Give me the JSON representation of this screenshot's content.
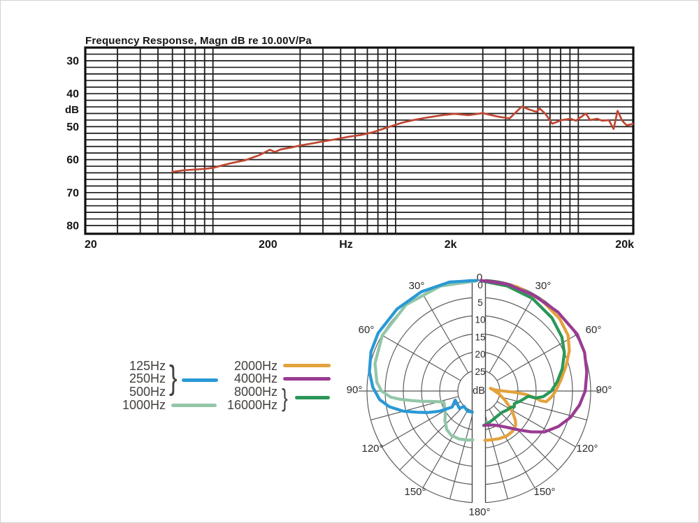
{
  "page": {
    "background": "#ffffff",
    "kind": "microphone specification charts"
  },
  "fr": {
    "title": "Frequency Response, Magn dB re 10.00V/Pa"
  },
  "legend": {
    "groups": [
      {
        "labels": [
          "125Hz",
          "250Hz",
          "500Hz"
        ],
        "brace": "}",
        "color": "#2a99d6"
      },
      {
        "labels": [
          "1000Hz"
        ],
        "color": "#93c6a8"
      },
      {
        "labels": [
          "2000Hz"
        ],
        "color": "#e4a23c"
      },
      {
        "labels": [
          "4000Hz"
        ],
        "color": "#9a3b92"
      },
      {
        "labels": [
          "8000Hz",
          "16000Hz"
        ],
        "brace": "}",
        "color": "#2a9758"
      }
    ]
  },
  "chart_data": [
    {
      "type": "line",
      "title": "Frequency Response, Magn dB re 10.00V/Pa",
      "x_scale": "log",
      "x_range": [
        20,
        20000
      ],
      "x_ticks": [
        {
          "label": "20",
          "value": 20
        },
        {
          "label": "200",
          "value": 200
        },
        {
          "label": "2k",
          "value": 2000
        },
        {
          "label": "20k",
          "value": 20000
        }
      ],
      "x_unit_label": "Hz",
      "y_unit_label": "dB",
      "y_ticks": [
        30,
        40,
        50,
        60,
        70,
        80
      ],
      "y_range": [
        26,
        82.5
      ],
      "y_inverted": true,
      "grid": {
        "y_step_db": 2,
        "x_minor": "1-2-3...9 per decade"
      },
      "series": [
        {
          "name": "frequency-response",
          "color": "#bf4631",
          "points": [
            [
              60,
              63.7
            ],
            [
              70,
              63.2
            ],
            [
              80,
              63.0
            ],
            [
              90,
              62.8
            ],
            [
              100,
              62.5
            ],
            [
              115,
              61.6
            ],
            [
              130,
              60.9
            ],
            [
              150,
              60.2
            ],
            [
              180,
              58.6
            ],
            [
              205,
              57.0
            ],
            [
              218,
              57.7
            ],
            [
              235,
              56.9
            ],
            [
              270,
              56.3
            ],
            [
              300,
              55.7
            ],
            [
              340,
              55.2
            ],
            [
              380,
              54.7
            ],
            [
              430,
              54.2
            ],
            [
              480,
              53.7
            ],
            [
              560,
              53.0
            ],
            [
              650,
              52.5
            ],
            [
              750,
              51.7
            ],
            [
              850,
              50.7
            ],
            [
              950,
              49.8
            ],
            [
              1100,
              48.7
            ],
            [
              1250,
              48.0
            ],
            [
              1500,
              47.2
            ],
            [
              1800,
              46.5
            ],
            [
              2100,
              46.1
            ],
            [
              2500,
              46.5
            ],
            [
              3000,
              45.9
            ],
            [
              3600,
              46.9
            ],
            [
              4200,
              47.5
            ],
            [
              4900,
              43.9
            ],
            [
              5400,
              44.8
            ],
            [
              5900,
              45.5
            ],
            [
              6150,
              44.5
            ],
            [
              6600,
              46.1
            ],
            [
              7200,
              49.1
            ],
            [
              8100,
              48.0
            ],
            [
              9100,
              47.6
            ],
            [
              9700,
              48.2
            ],
            [
              11000,
              46.0
            ],
            [
              11600,
              48.0
            ],
            [
              12700,
              47.6
            ],
            [
              13500,
              48.2
            ],
            [
              14700,
              48.0
            ],
            [
              15600,
              50.7
            ],
            [
              16400,
              45.2
            ],
            [
              17400,
              48.2
            ],
            [
              18400,
              49.6
            ],
            [
              19900,
              49.2
            ]
          ]
        }
      ]
    },
    {
      "type": "polar",
      "center_label": "dB",
      "radial_ticks": [
        0,
        5,
        10,
        15,
        20,
        25
      ],
      "radial_range": [
        0,
        25
      ],
      "radial_direction": "attenuation increases toward center",
      "angle_labels": [
        "0",
        "30°",
        "60°",
        "90°",
        "120°",
        "150°",
        "180°"
      ],
      "spoke_angles_upper": [
        30,
        60,
        90
      ],
      "spoke_angles_lower": [
        105,
        120,
        135,
        150,
        165
      ],
      "series": [
        {
          "name": "1000Hz",
          "color": "#93c6a8",
          "side": "left",
          "points": [
            [
              1,
              0.4
            ],
            [
              20,
              0.0
            ],
            [
              40,
              -0.3
            ],
            [
              60,
              0.1
            ],
            [
              75,
              1.2
            ],
            [
              85,
              2.6
            ],
            [
              90,
              4.0
            ],
            [
              94,
              6.5
            ],
            [
              96,
              9.0
            ],
            [
              98,
              12.0
            ],
            [
              100,
              14.6
            ],
            [
              102,
              17.0
            ],
            [
              105,
              19.4
            ],
            [
              108,
              20.7
            ],
            [
              115,
              20.4
            ],
            [
              122,
              19.9
            ],
            [
              131,
              18.4
            ],
            [
              140,
              17.0
            ],
            [
              148,
              16.4
            ],
            [
              158,
              16.5
            ],
            [
              167,
              16.9
            ],
            [
              173,
              17.2
            ]
          ]
        },
        {
          "name": "125-500Hz",
          "color": "#2a99d6",
          "side": "left",
          "points": [
            [
              1,
              0.3
            ],
            [
              15,
              -0.3
            ],
            [
              30,
              -0.8
            ],
            [
              45,
              -1.1
            ],
            [
              60,
              -1.2
            ],
            [
              70,
              -0.8
            ],
            [
              80,
              0.2
            ],
            [
              88,
              1.6
            ],
            [
              95,
              3.4
            ],
            [
              100,
              5.8
            ],
            [
              105,
              9.3
            ],
            [
              109,
              12.8
            ],
            [
              113,
              15.6
            ],
            [
              117,
              18.5
            ],
            [
              121,
              22.2
            ],
            [
              111,
              23.8
            ],
            [
              132,
              23.6
            ],
            [
              136,
              24.9
            ],
            [
              151,
              24.4
            ],
            [
              163,
              24.7
            ]
          ]
        },
        {
          "name": "2000Hz",
          "color": "#e4a23c",
          "side": "right",
          "points": [
            [
              1,
              0.3
            ],
            [
              20,
              0.2
            ],
            [
              35,
              0.4
            ],
            [
              48,
              0.9
            ],
            [
              58,
              1.8
            ],
            [
              66,
              3.5
            ],
            [
              74,
              5.8
            ],
            [
              82,
              7.9
            ],
            [
              90,
              9.6
            ],
            [
              95,
              10.8
            ],
            [
              99,
              12.0
            ],
            [
              99,
              13.5
            ],
            [
              97,
              15.0
            ],
            [
              94,
              18.0
            ],
            [
              92,
              21.0
            ],
            [
              90,
              24.0
            ],
            [
              86,
              26.3
            ],
            [
              77,
              27.5
            ],
            [
              88,
              26.6
            ],
            [
              99,
              25.0
            ],
            [
              110,
              23.0
            ],
            [
              118,
              21.0
            ],
            [
              124,
              19.3
            ],
            [
              129,
              17.8
            ],
            [
              133,
              16.9
            ],
            [
              140,
              16.3
            ],
            [
              148,
              16.2
            ],
            [
              157,
              16.5
            ],
            [
              166,
              16.9
            ],
            [
              173,
              17.1
            ]
          ]
        },
        {
          "name": "8000-16000Hz",
          "color": "#2a9758",
          "side": "right",
          "points": [
            [
              1,
              0.4
            ],
            [
              15,
              0.8
            ],
            [
              30,
              1.3
            ],
            [
              45,
              2.3
            ],
            [
              57,
              3.5
            ],
            [
              66,
              5.0
            ],
            [
              75,
              7.0
            ],
            [
              83,
              9.0
            ],
            [
              90,
              10.8
            ],
            [
              95,
              13.0
            ],
            [
              97,
              15.0
            ],
            [
              96,
              17.1
            ],
            [
              100,
              18.2
            ],
            [
              104,
              19.1
            ],
            [
              107,
              19.9
            ],
            [
              110,
              20.4
            ],
            [
              114,
              20.1
            ],
            [
              117,
              20.9
            ],
            [
              124,
              21.4
            ],
            [
              133,
              22.1
            ],
            [
              143,
              22.2
            ],
            [
              156,
              21.9
            ],
            [
              167,
              21.4
            ],
            [
              172,
              21.2
            ]
          ]
        },
        {
          "name": "4000Hz",
          "color": "#9a3b92",
          "side": "right",
          "points": [
            [
              1,
              0.3
            ],
            [
              15,
              0.3
            ],
            [
              30,
              0.4
            ],
            [
              45,
              0.0
            ],
            [
              60,
              -0.5
            ],
            [
              70,
              -0.2
            ],
            [
              80,
              0.6
            ],
            [
              90,
              1.5
            ],
            [
              98,
              2.8
            ],
            [
              106,
              4.5
            ],
            [
              114,
              6.8
            ],
            [
              122,
              9.5
            ],
            [
              128,
              12.5
            ],
            [
              134,
              15.3
            ],
            [
              140,
              17.5
            ],
            [
              147,
              19.2
            ],
            [
              155,
              20.4
            ],
            [
              163,
              21.0
            ],
            [
              171,
              21.2
            ]
          ]
        }
      ]
    }
  ]
}
